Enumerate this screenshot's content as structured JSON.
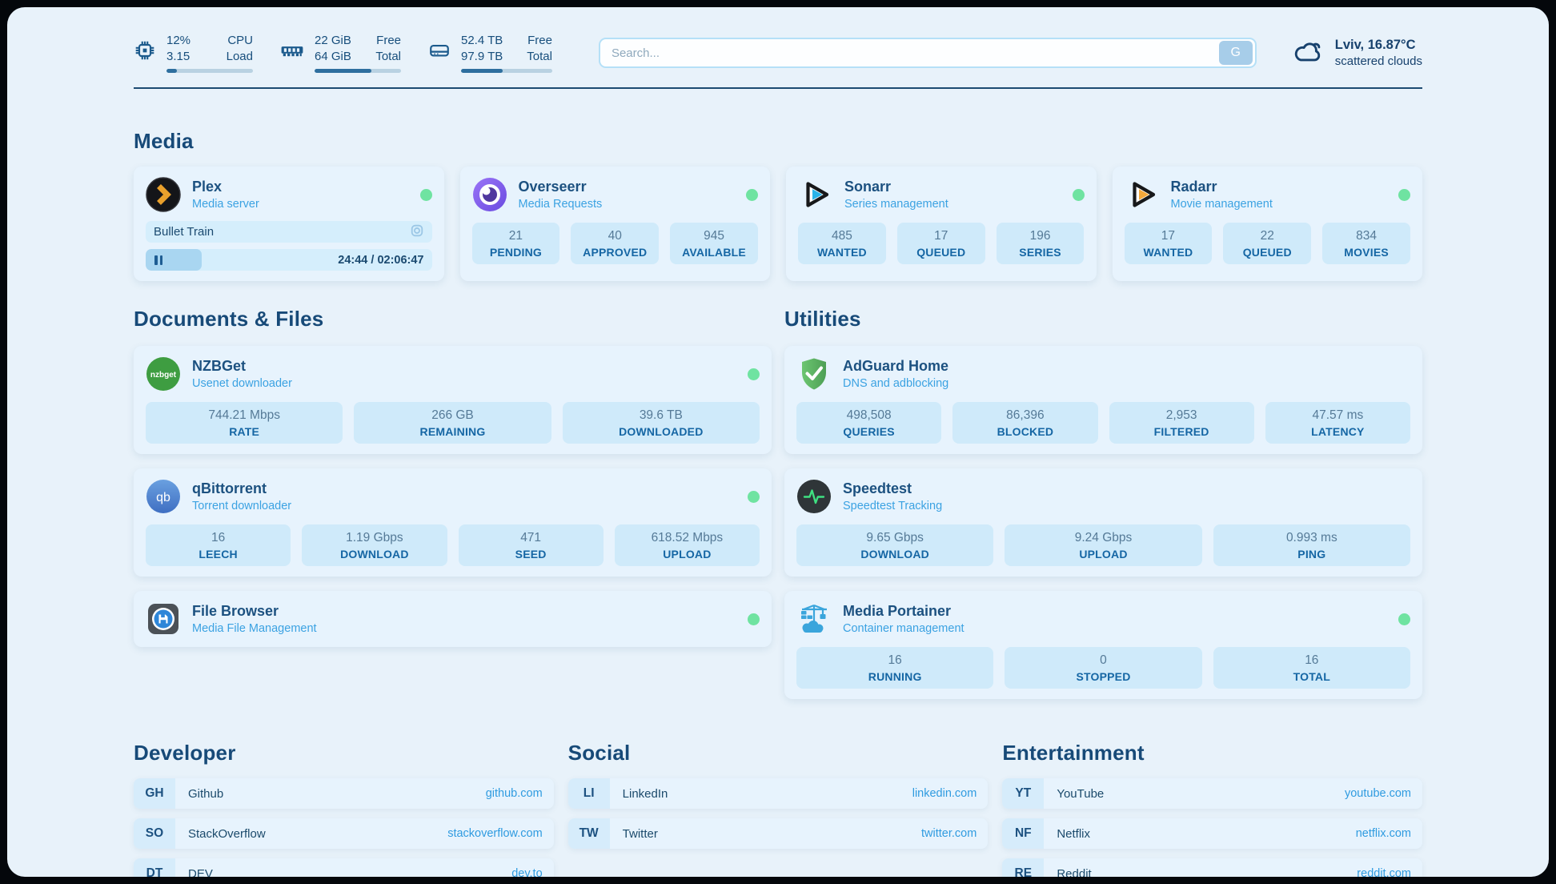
{
  "topbar": {
    "cpu": {
      "value_top": "12%",
      "value_bottom": "3.15",
      "label_top": "CPU",
      "label_bottom": "Load",
      "progress_pct": 12
    },
    "memory": {
      "value_top": "22 GiB",
      "value_bottom": "64 GiB",
      "label_top": "Free",
      "label_bottom": "Total",
      "progress_pct": 66
    },
    "storage": {
      "value_top": "52.4 TB",
      "value_bottom": "97.9 TB",
      "label_top": "Free",
      "label_bottom": "Total",
      "progress_pct": 46
    },
    "search": {
      "placeholder": "Search...",
      "engine_button": "G"
    },
    "weather": {
      "location": "Lviv, 16.87°C",
      "condition": "scattered clouds"
    }
  },
  "sections": {
    "media": {
      "title": "Media"
    },
    "documents": {
      "title": "Documents & Files"
    },
    "utilities": {
      "title": "Utilities"
    },
    "developer": {
      "title": "Developer"
    },
    "social": {
      "title": "Social"
    },
    "entertainment": {
      "title": "Entertainment"
    }
  },
  "apps": {
    "plex": {
      "name": "Plex",
      "description": "Media server",
      "online": true,
      "now_playing": "Bullet Train",
      "elapsed_total": "24:44 / 02:06:47",
      "progress_pct": 19.5
    },
    "overseerr": {
      "name": "Overseerr",
      "description": "Media Requests",
      "online": true,
      "stats": [
        {
          "value": "21",
          "label": "PENDING"
        },
        {
          "value": "40",
          "label": "APPROVED"
        },
        {
          "value": "945",
          "label": "AVAILABLE"
        }
      ]
    },
    "sonarr": {
      "name": "Sonarr",
      "description": "Series management",
      "online": true,
      "stats": [
        {
          "value": "485",
          "label": "WANTED"
        },
        {
          "value": "17",
          "label": "QUEUED"
        },
        {
          "value": "196",
          "label": "SERIES"
        }
      ]
    },
    "radarr": {
      "name": "Radarr",
      "description": "Movie management",
      "online": true,
      "stats": [
        {
          "value": "17",
          "label": "WANTED"
        },
        {
          "value": "22",
          "label": "QUEUED"
        },
        {
          "value": "834",
          "label": "MOVIES"
        }
      ]
    },
    "nzbget": {
      "name": "NZBGet",
      "description": "Usenet downloader",
      "online": true,
      "stats": [
        {
          "value": "744.21 Mbps",
          "label": "RATE"
        },
        {
          "value": "266 GB",
          "label": "REMAINING"
        },
        {
          "value": "39.6 TB",
          "label": "DOWNLOADED"
        }
      ]
    },
    "qbittorrent": {
      "name": "qBittorrent",
      "description": "Torrent downloader",
      "online": true,
      "stats": [
        {
          "value": "16",
          "label": "LEECH"
        },
        {
          "value": "1.19 Gbps",
          "label": "DOWNLOAD"
        },
        {
          "value": "471",
          "label": "SEED"
        },
        {
          "value": "618.52 Mbps",
          "label": "UPLOAD"
        }
      ]
    },
    "filebrowser": {
      "name": "File Browser",
      "description": "Media File Management",
      "online": true
    },
    "adguard": {
      "name": "AdGuard Home",
      "description": "DNS and adblocking",
      "stats": [
        {
          "value": "498,508",
          "label": "QUERIES"
        },
        {
          "value": "86,396",
          "label": "BLOCKED"
        },
        {
          "value": "2,953",
          "label": "FILTERED"
        },
        {
          "value": "47.57 ms",
          "label": "LATENCY"
        }
      ]
    },
    "speedtest": {
      "name": "Speedtest",
      "description": "Speedtest Tracking",
      "stats": [
        {
          "value": "9.65 Gbps",
          "label": "DOWNLOAD"
        },
        {
          "value": "9.24 Gbps",
          "label": "UPLOAD"
        },
        {
          "value": "0.993 ms",
          "label": "PING"
        }
      ]
    },
    "portainer": {
      "name": "Media Portainer",
      "description": "Container management",
      "online": true,
      "stats": [
        {
          "value": "16",
          "label": "RUNNING"
        },
        {
          "value": "0",
          "label": "STOPPED"
        },
        {
          "value": "16",
          "label": "TOTAL"
        }
      ]
    }
  },
  "bookmarks": {
    "developer": [
      {
        "abbr": "GH",
        "name": "Github",
        "domain": "github.com"
      },
      {
        "abbr": "SO",
        "name": "StackOverflow",
        "domain": "stackoverflow.com"
      },
      {
        "abbr": "DT",
        "name": "DEV",
        "domain": "dev.to"
      }
    ],
    "social": [
      {
        "abbr": "LI",
        "name": "LinkedIn",
        "domain": "linkedin.com"
      },
      {
        "abbr": "TW",
        "name": "Twitter",
        "domain": "twitter.com"
      }
    ],
    "entertainment": [
      {
        "abbr": "YT",
        "name": "YouTube",
        "domain": "youtube.com"
      },
      {
        "abbr": "NF",
        "name": "Netflix",
        "domain": "netflix.com"
      },
      {
        "abbr": "RE",
        "name": "Reddit",
        "domain": "reddit.com"
      }
    ]
  },
  "colors": {
    "status_online": "#6fe3a1",
    "accent_link": "#2f9be0",
    "page_bg": "#e8f2fa"
  }
}
